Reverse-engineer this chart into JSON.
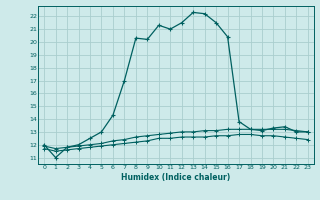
{
  "xlabel": "Humidex (Indice chaleur)",
  "bg_color": "#ceeaea",
  "grid_color": "#aacece",
  "line_color": "#006060",
  "xlim": [
    -0.5,
    23.5
  ],
  "ylim": [
    10.5,
    22.8
  ],
  "yticks": [
    11,
    12,
    13,
    14,
    15,
    16,
    17,
    18,
    19,
    20,
    21,
    22
  ],
  "xticks": [
    0,
    1,
    2,
    3,
    4,
    5,
    6,
    7,
    8,
    9,
    10,
    11,
    12,
    13,
    14,
    15,
    16,
    17,
    18,
    19,
    20,
    21,
    22,
    23
  ],
  "main_x": [
    0,
    1,
    2,
    3,
    4,
    5,
    6,
    7,
    8,
    9,
    10,
    11,
    12,
    13,
    14,
    15,
    16,
    17,
    18,
    19,
    20,
    21,
    22,
    23
  ],
  "main_y": [
    12.0,
    11.0,
    11.8,
    12.0,
    12.5,
    13.0,
    14.3,
    17.0,
    20.3,
    20.2,
    21.3,
    21.0,
    21.5,
    22.3,
    22.2,
    21.5,
    20.4,
    13.8,
    13.2,
    13.1,
    13.3,
    13.4,
    13.0,
    13.0
  ],
  "flat1_x": [
    0,
    1,
    2,
    3,
    4,
    5,
    6,
    7,
    8,
    9,
    10,
    11,
    12,
    13,
    14,
    15,
    16,
    17,
    18,
    19,
    20,
    21,
    22,
    23
  ],
  "flat1_y": [
    11.9,
    11.7,
    11.8,
    11.9,
    12.0,
    12.1,
    12.3,
    12.4,
    12.6,
    12.7,
    12.8,
    12.9,
    13.0,
    13.0,
    13.1,
    13.1,
    13.2,
    13.2,
    13.2,
    13.2,
    13.2,
    13.2,
    13.1,
    13.0
  ],
  "flat2_x": [
    0,
    1,
    2,
    3,
    4,
    5,
    6,
    7,
    8,
    9,
    10,
    11,
    12,
    13,
    14,
    15,
    16,
    17,
    18,
    19,
    20,
    21,
    22,
    23
  ],
  "flat2_y": [
    11.7,
    11.5,
    11.6,
    11.7,
    11.8,
    11.9,
    12.0,
    12.1,
    12.2,
    12.3,
    12.5,
    12.5,
    12.6,
    12.6,
    12.6,
    12.7,
    12.7,
    12.8,
    12.8,
    12.7,
    12.7,
    12.6,
    12.5,
    12.4
  ]
}
